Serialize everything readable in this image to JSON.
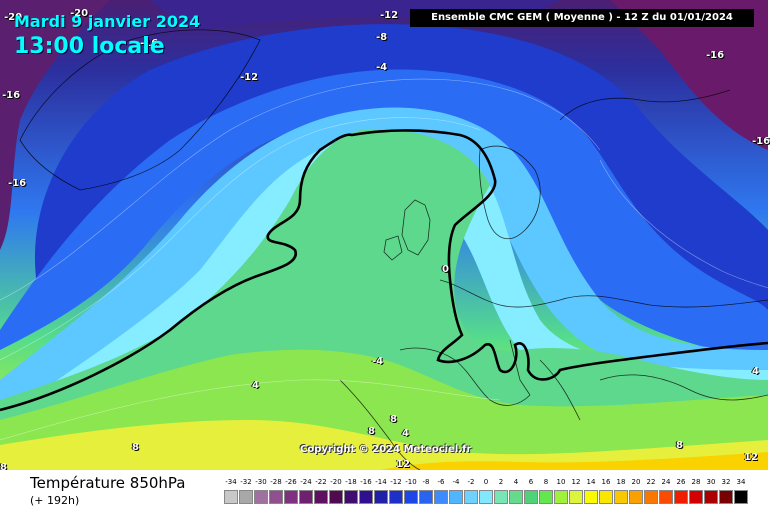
{
  "header": {
    "date": "Mardi 9 janvier 2024",
    "time": "13:00 locale",
    "model": "Ensemble CMC GEM  ( Moyenne )  -  12 Z du 01/01/2024"
  },
  "map": {
    "copyright": "Copyright © 2024 Meteociel.fr",
    "isotherm_labels": [
      "-20",
      "-20",
      "-16",
      "-12",
      "-8",
      "-4",
      "-12",
      "-16",
      "-16",
      "-16",
      "-16",
      "0",
      "-4",
      "4",
      "4",
      "4",
      "8",
      "8",
      "8",
      "8",
      "8",
      "12",
      "12"
    ],
    "zero_line_color": "#000000"
  },
  "footer": {
    "variable": "Température 850hPa",
    "lead": "(+ 192h)"
  },
  "legend": {
    "ticks": [
      "-34",
      "-32",
      "-30",
      "-28",
      "-26",
      "-24",
      "-22",
      "-20",
      "-18",
      "-16",
      "-14",
      "-12",
      "-10",
      "-8",
      "-6",
      "-4",
      "-2",
      "0",
      "2",
      "4",
      "6",
      "8",
      "10",
      "12",
      "14",
      "16",
      "18",
      "20",
      "22",
      "24",
      "26",
      "28",
      "30",
      "32",
      "34"
    ],
    "colors": [
      "#c8c8c8",
      "#a8a8a8",
      "#a070a0",
      "#905090",
      "#803080",
      "#702070",
      "#601060",
      "#500a50",
      "#400c70",
      "#301090",
      "#2020a8",
      "#1e30c8",
      "#1e46e6",
      "#2864f0",
      "#3c8cff",
      "#50b4ff",
      "#6ed2ff",
      "#80e8ff",
      "#78e6b4",
      "#64dc8c",
      "#50d278",
      "#64e650",
      "#a0f03c",
      "#dcf53c",
      "#fafa00",
      "#fae600",
      "#fac800",
      "#faa000",
      "#fa7800",
      "#fa4b00",
      "#f01e00",
      "#d20000",
      "#aa0000",
      "#780000",
      "#000000"
    ]
  }
}
